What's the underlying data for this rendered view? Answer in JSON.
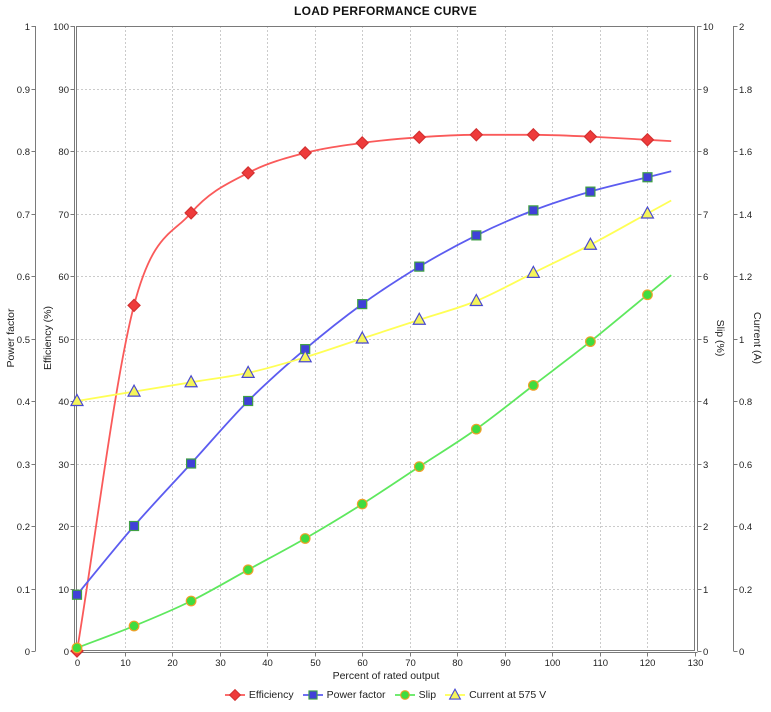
{
  "chart_data": {
    "type": "line",
    "title": "LOAD PERFORMANCE CURVE",
    "xlabel": "Percent of rated output",
    "grid": true,
    "legend_position": "bottom",
    "x_axis": {
      "min": 0,
      "max": 130,
      "step": 10,
      "ticks": [
        "0",
        "10",
        "20",
        "30",
        "40",
        "50",
        "60",
        "70",
        "80",
        "90",
        "100",
        "110",
        "120",
        "130"
      ]
    },
    "axes": {
      "power_factor": {
        "title": "Power factor",
        "side": "left-outer",
        "min": 0,
        "max": 1,
        "step": 0.1,
        "ticks": [
          "0",
          "0.1",
          "0.2",
          "0.3",
          "0.4",
          "0.5",
          "0.6",
          "0.7",
          "0.8",
          "0.9",
          "1"
        ]
      },
      "efficiency": {
        "title": "Efficiency (%)",
        "side": "left-inner",
        "min": 0,
        "max": 100,
        "step": 10,
        "ticks": [
          "0",
          "10",
          "20",
          "30",
          "40",
          "50",
          "60",
          "70",
          "80",
          "90",
          "100"
        ]
      },
      "slip": {
        "title": "Slip (%)",
        "side": "right-inner",
        "min": 0,
        "max": 10,
        "step": 1,
        "ticks": [
          "0",
          "1",
          "2",
          "3",
          "4",
          "5",
          "6",
          "7",
          "8",
          "9",
          "10"
        ]
      },
      "current": {
        "title": "Current (A)",
        "side": "right-outer",
        "min": 0,
        "max": 2,
        "step": 0.2,
        "ticks": [
          "0",
          "0.2",
          "0.4",
          "0.6",
          "0.8",
          "1",
          "1.2",
          "1.4",
          "1.6",
          "1.8",
          "2"
        ]
      }
    },
    "x": [
      0,
      12,
      24,
      36,
      48,
      60,
      72,
      84,
      96,
      108,
      120
    ],
    "series": [
      {
        "name": "Efficiency",
        "axis": "efficiency",
        "marker": "diamond",
        "colors": {
          "line": "#fa5a5a",
          "fill": "#ee3b3b",
          "edge": "#d33030"
        },
        "values": [
          0,
          55.3,
          70.1,
          76.5,
          79.7,
          81.3,
          82.2,
          82.6,
          82.6,
          82.3,
          81.8
        ]
      },
      {
        "name": "Power factor",
        "axis": "power_factor",
        "marker": "square",
        "colors": {
          "line": "#5c5cf0",
          "fill": "#4040d8",
          "edge": "#3fa045"
        },
        "values": [
          0.09,
          0.2,
          0.3,
          0.4,
          0.483,
          0.555,
          0.615,
          0.665,
          0.705,
          0.735,
          0.758
        ]
      },
      {
        "name": "Slip",
        "axis": "slip",
        "marker": "circle",
        "colors": {
          "line": "#5ee85e",
          "fill": "#3fdc3f",
          "edge": "#f0a028"
        },
        "values": [
          0.05,
          0.4,
          0.8,
          1.3,
          1.8,
          2.35,
          2.95,
          3.55,
          4.25,
          4.95,
          5.7
        ]
      },
      {
        "name": "Current at 575 V",
        "axis": "current",
        "marker": "triangle",
        "colors": {
          "line": "#ffff55",
          "fill": "#f4f45a",
          "edge": "#4848d0"
        },
        "values": [
          0.8,
          0.83,
          0.86,
          0.89,
          0.94,
          1.0,
          1.06,
          1.12,
          1.21,
          1.3,
          1.4
        ]
      }
    ],
    "style": {
      "grid_color": "#cbcbcb",
      "axis_color": "#7a7a7a",
      "text_color": "#222222",
      "background": "#ffffff"
    }
  }
}
